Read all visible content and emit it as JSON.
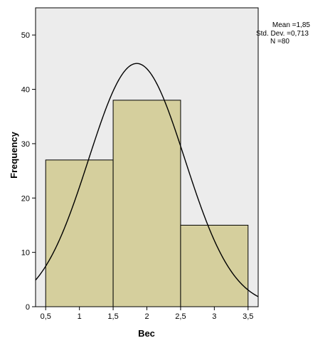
{
  "chart_data": {
    "type": "bar",
    "subtype": "histogram",
    "bins": [
      {
        "from": 0.5,
        "to": 1.5,
        "value": 27
      },
      {
        "from": 1.5,
        "to": 2.5,
        "value": 38
      },
      {
        "from": 2.5,
        "to": 3.5,
        "value": 15
      }
    ],
    "normal_curve": {
      "mean": 1.85,
      "std": 0.713,
      "n": 80,
      "bin_width": 1
    },
    "xlabel": "Вес",
    "ylabel": "Frequency",
    "xlim": [
      0.35,
      3.65
    ],
    "ylim": [
      0,
      55
    ],
    "xticks": [
      "0,5",
      "1",
      "1,5",
      "2",
      "2,5",
      "3",
      "3,5"
    ],
    "xtick_values": [
      0.5,
      1,
      1.5,
      2,
      2.5,
      3,
      3.5
    ],
    "yticks": [
      "0",
      "10",
      "20",
      "30",
      "40",
      "50"
    ],
    "ytick_values": [
      0,
      10,
      20,
      30,
      40,
      50
    ],
    "stats": {
      "mean_line": "Mean =1,85",
      "std_line": "Std. Dev. =0,713",
      "n_line": "N =80"
    },
    "grid": false,
    "colors": {
      "plot_background": "#ececec",
      "bar_fill": "#d5cf9d",
      "bar_stroke": "#000000",
      "curve": "#000000"
    }
  }
}
